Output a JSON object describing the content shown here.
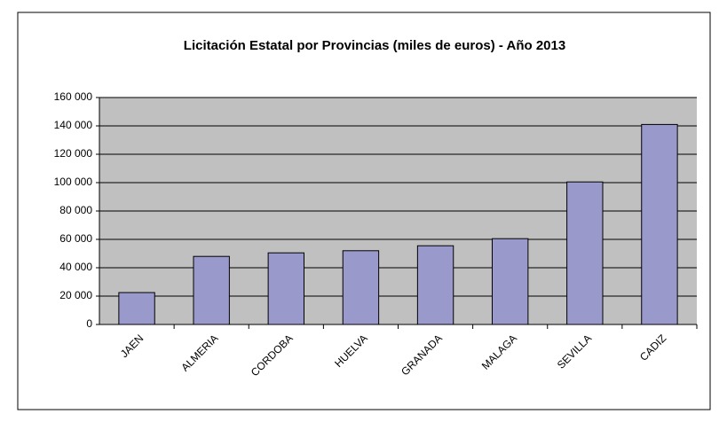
{
  "chart_data": {
    "type": "bar",
    "title": "Licitación Estatal por Provincias (miles de euros) - Año 2013",
    "categories": [
      "JAEN",
      "ALMERIA",
      "CORDOBA",
      "HUELVA",
      "GRANADA",
      "MALAGA",
      "SEVILLA",
      "CADIZ"
    ],
    "values": [
      22500,
      48000,
      50500,
      52000,
      55500,
      60500,
      100500,
      141000
    ],
    "color": "#9999cc",
    "ylim": [
      0,
      160000
    ],
    "yticks": [
      0,
      {
        "value": 20000,
        "label": "20 000"
      },
      {
        "value": 40000,
        "label": "40 000"
      },
      {
        "value": 60000,
        "label": "60 000"
      },
      {
        "value": 80000,
        "label": "80 000"
      },
      {
        "value": 100000,
        "label": "100 000"
      },
      {
        "value": 120000,
        "label": "120 000"
      },
      {
        "value": 140000,
        "label": "140 000"
      },
      {
        "value": 160000,
        "label": "160 000"
      }
    ],
    "grid": true
  }
}
